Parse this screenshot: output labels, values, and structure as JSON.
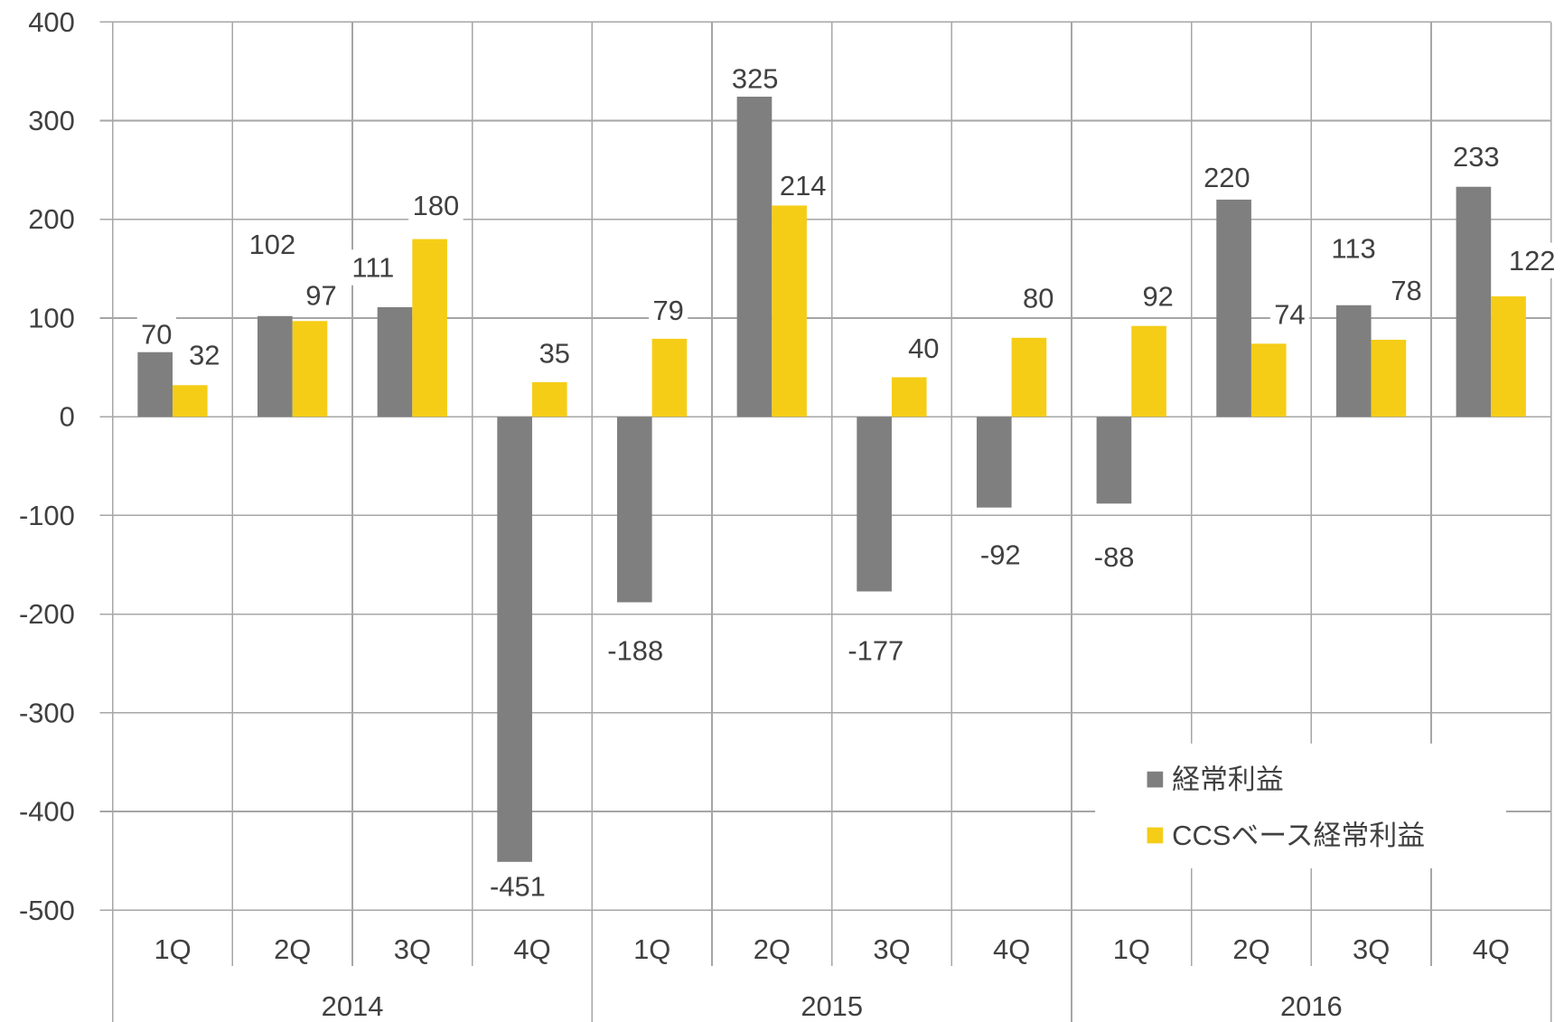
{
  "chart_data": {
    "type": "bar",
    "years": [
      {
        "label": "2014",
        "quarters": [
          "1Q",
          "2Q",
          "3Q",
          "4Q"
        ]
      },
      {
        "label": "2015",
        "quarters": [
          "1Q",
          "2Q",
          "3Q",
          "4Q"
        ]
      },
      {
        "label": "2016",
        "quarters": [
          "1Q",
          "2Q",
          "3Q",
          "4Q"
        ]
      }
    ],
    "series": [
      {
        "name": "経常利益",
        "color": "#7f7f7f",
        "values": [
          70,
          102,
          111,
          -451,
          -188,
          325,
          -177,
          -92,
          -88,
          220,
          113,
          233
        ]
      },
      {
        "name": "CCSベース経常利益",
        "color": "#f5cd17",
        "values": [
          32,
          97,
          180,
          35,
          79,
          214,
          40,
          80,
          92,
          74,
          78,
          122
        ]
      }
    ],
    "yticks": [
      400,
      300,
      200,
      100,
      0,
      -100,
      -200,
      -300,
      -400,
      -500
    ],
    "ylim": [
      -500,
      400
    ],
    "grid": true,
    "data_labels": true,
    "legend": "bottom-right",
    "colors": {
      "text": "#404040",
      "grid": "#a6a6a6",
      "background": "#ffffff"
    }
  }
}
